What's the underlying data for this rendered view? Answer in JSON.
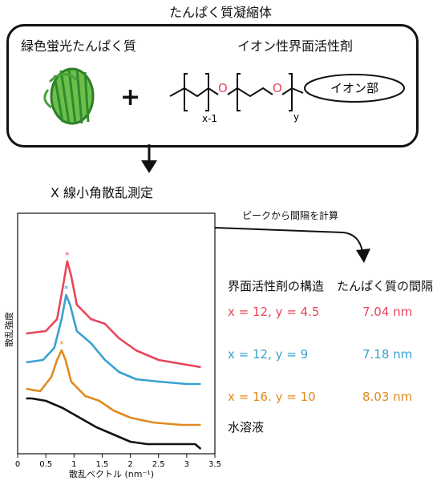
{
  "header": {
    "title": "たんぱく質凝縮体"
  },
  "components": {
    "protein_label": "緑色蛍光たんぱく質",
    "plus": "+",
    "surfactant_label": "イオン性界面活性剤",
    "formula": {
      "sub_left": "x-1",
      "sub_right": "y",
      "o1": "O",
      "o2": "O",
      "head_group": "イオン部"
    }
  },
  "measurement_label": "X 線小角散乱測定",
  "arrow_note": "ピークから間隔を計算",
  "table": {
    "col_structure": "界面活性剤の構造",
    "col_spacing": "たんぱく質の間隔",
    "rows": [
      {
        "structure": "x = 12, y = 4.5",
        "spacing": "7.04 nm",
        "color": "#e8465a"
      },
      {
        "structure": "x = 12, y = 9",
        "spacing": "7.18 nm",
        "color": "#3aa1cf"
      },
      {
        "structure": "x = 16. y = 10",
        "spacing": "8.03 nm",
        "color": "#e08a1f"
      }
    ],
    "water_label": "水溶液"
  },
  "chart_data": {
    "type": "line",
    "xlabel": "散乱ベクトル (nm⁻¹)",
    "ylabel": "散乱強度",
    "x_ticks": [
      "0",
      "0.5",
      "1",
      "1.5",
      "2",
      "2.5",
      "3",
      "3.5"
    ],
    "xlim": [
      0,
      3.5
    ],
    "peak_marker": "*",
    "series": [
      {
        "color": "#e8465a",
        "peak_x": 0.88,
        "points": [
          [
            0.15,
            0.5
          ],
          [
            0.5,
            0.51
          ],
          [
            0.7,
            0.56
          ],
          [
            0.8,
            0.69
          ],
          [
            0.88,
            0.8
          ],
          [
            0.95,
            0.74
          ],
          [
            1.05,
            0.62
          ],
          [
            1.3,
            0.56
          ],
          [
            1.55,
            0.54
          ],
          [
            1.8,
            0.48
          ],
          [
            2.1,
            0.43
          ],
          [
            2.5,
            0.39
          ],
          [
            3.0,
            0.37
          ],
          [
            3.25,
            0.36
          ]
        ]
      },
      {
        "color": "#3aa1cf",
        "peak_x": 0.86,
        "points": [
          [
            0.15,
            0.38
          ],
          [
            0.45,
            0.39
          ],
          [
            0.65,
            0.44
          ],
          [
            0.78,
            0.56
          ],
          [
            0.86,
            0.66
          ],
          [
            0.93,
            0.62
          ],
          [
            1.05,
            0.51
          ],
          [
            1.3,
            0.46
          ],
          [
            1.55,
            0.39
          ],
          [
            1.8,
            0.34
          ],
          [
            2.1,
            0.31
          ],
          [
            2.5,
            0.3
          ],
          [
            3.0,
            0.29
          ],
          [
            3.25,
            0.29
          ]
        ]
      },
      {
        "color": "#e08a1f",
        "peak_x": 0.78,
        "points": [
          [
            0.15,
            0.27
          ],
          [
            0.4,
            0.26
          ],
          [
            0.6,
            0.32
          ],
          [
            0.7,
            0.39
          ],
          [
            0.78,
            0.43
          ],
          [
            0.85,
            0.39
          ],
          [
            0.95,
            0.3
          ],
          [
            1.2,
            0.24
          ],
          [
            1.45,
            0.22
          ],
          [
            1.7,
            0.18
          ],
          [
            2.0,
            0.15
          ],
          [
            2.4,
            0.13
          ],
          [
            2.9,
            0.12
          ],
          [
            3.25,
            0.12
          ]
        ]
      },
      {
        "color": "#111111",
        "points": [
          [
            0.15,
            0.23
          ],
          [
            0.25,
            0.23
          ],
          [
            0.5,
            0.22
          ],
          [
            0.8,
            0.19
          ],
          [
            1.1,
            0.15
          ],
          [
            1.4,
            0.11
          ],
          [
            1.7,
            0.08
          ],
          [
            2.0,
            0.05
          ],
          [
            2.3,
            0.04
          ],
          [
            2.6,
            0.04
          ],
          [
            2.9,
            0.04
          ],
          [
            3.15,
            0.04
          ],
          [
            3.25,
            0.02
          ]
        ]
      }
    ]
  }
}
